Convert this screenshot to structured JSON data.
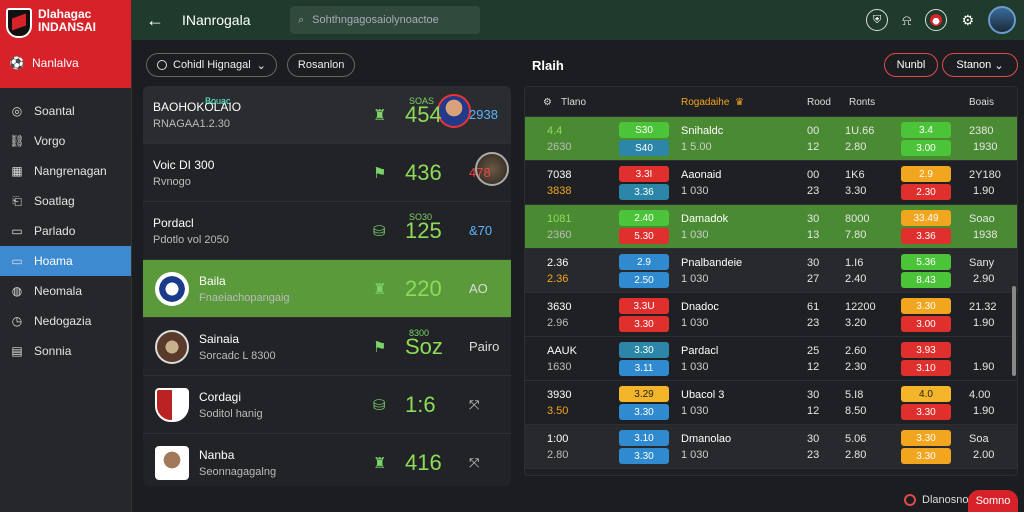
{
  "brand": {
    "name": "Dlahagac",
    "sub": "INDANSAI",
    "item": "Nanlalva"
  },
  "sidebar": {
    "items": [
      {
        "label": "Soantal",
        "icon": "compass-icon"
      },
      {
        "label": "Vorgo",
        "icon": "link-icon"
      },
      {
        "label": "Nangrenagan",
        "icon": "image-icon"
      },
      {
        "label": "Soatlag",
        "icon": "bookmark-icon"
      },
      {
        "label": "Parlado",
        "icon": "calendar-icon"
      },
      {
        "label": "Hoama",
        "icon": "card-icon",
        "active": true
      },
      {
        "label": "Neomala",
        "icon": "globe-icon"
      },
      {
        "label": "Nedogazia",
        "icon": "clock-icon"
      },
      {
        "label": "Sonnia",
        "icon": "chart-icon"
      }
    ]
  },
  "topbar": {
    "title": "INanrogala",
    "search_placeholder": "Sohthngagosaiolynoactoe"
  },
  "filters": {
    "primary": "Cohidl Hignagal",
    "secondary": "Rosanlon"
  },
  "matches": [
    {
      "tag": "Bouac",
      "mini": "SOAS",
      "name": "BAOHOKOLAIO",
      "sub": "RNAGAA1.2.30",
      "score": "454",
      "right": "2938",
      "right_color": "blue",
      "crest": "c1",
      "icon": "trophy-icon"
    },
    {
      "tag": "",
      "mini": "",
      "name": "Voic DI 300",
      "sub": "Rvnogo",
      "score": "436",
      "right": "478",
      "right_color": "red",
      "crest": "c2",
      "icon": "flag-icon"
    },
    {
      "tag": "",
      "mini": "SO30",
      "name": "Pordacl",
      "sub": "Pdotlo vol 2050",
      "score": "125",
      "right": "&70",
      "right_color": "blue",
      "crest": "c3",
      "icon": "money-icon"
    },
    {
      "tag": "",
      "mini": "",
      "name": "Baila",
      "sub": "Fnaeiachopangaig",
      "score": "220",
      "right": "AO",
      "right_color": "white",
      "crest": "c4",
      "icon": "trophy-icon",
      "highlight": true
    },
    {
      "tag": "",
      "mini": "8300",
      "name": "Sainaia",
      "sub": "Sorcadc L 8300",
      "score": "Soz",
      "right": "Pairo",
      "right_color": "white",
      "crest": "c5",
      "icon": "flag-icon"
    },
    {
      "tag": "",
      "mini": "",
      "name": "Cordagi",
      "sub": "Soditol hanig",
      "score": "1:6",
      "right": "⤧",
      "right_color": "white",
      "crest": "c6",
      "icon": "money-icon"
    },
    {
      "tag": "",
      "mini": "",
      "name": "Nanba",
      "sub": "Seonnagagalng",
      "score": "416",
      "right": "⤧",
      "right_color": "white",
      "crest": "c7",
      "icon": "trophy-icon"
    }
  ],
  "right": {
    "title": "Rlaih",
    "btn1": "Nunbl",
    "btn2": "Stanon",
    "head": {
      "col1": "Tlano",
      "col2": "Rogadaihe",
      "col3": "Rood",
      "col4": "Ronts",
      "col5": "Boais"
    },
    "rows": [
      {
        "s1": "4.4",
        "s2": "2630",
        "b1": "S30",
        "b2": "S40",
        "b1c": "green-b",
        "b2c": "teal-b",
        "team": "Snihaldc",
        "team2": "1 5.00",
        "c1": "00",
        "c1b": "12",
        "c2": "1U.66",
        "c2b": "2.80",
        "o1": "3.4",
        "o2": "3.00",
        "o1c": "green-b",
        "o2c": "green-b",
        "c3": "2380",
        "c3b": "1930",
        "style": "green"
      },
      {
        "s1": "7038",
        "s2": "3838",
        "b1": "3.3I",
        "b2": "3.36",
        "b1c": "red-b",
        "b2c": "teal-b",
        "team": "Aaonaid",
        "team2": "1 030",
        "c1": "00",
        "c1b": "23",
        "c2": "1K6",
        "c2b": "3.30",
        "o1": "2.9",
        "o2": "2.30",
        "o1c": "orange-b",
        "o2c": "red-b",
        "c3": "2Y180",
        "c3b": "1.90",
        "style": ""
      },
      {
        "s1": "1081",
        "s2": "2360",
        "b1": "2.40",
        "b2": "5.30",
        "b1c": "green-b",
        "b2c": "red-b",
        "team": "Damadok",
        "team2": "1 030",
        "c1": "30",
        "c1b": "13",
        "c2": "8000",
        "c2b": "7.80",
        "o1": "33.49",
        "o2": "3.36",
        "o1c": "orange-b",
        "o2c": "red-b",
        "c3": "Soao",
        "c3b": "1938",
        "style": "green"
      },
      {
        "s1": "2.36",
        "s2": "2.36",
        "b1": "2.9",
        "b2": "2.50",
        "b1c": "blue-b",
        "b2c": "blue-b",
        "team": "Pnalbandeie",
        "team2": "1 030",
        "c1": "30",
        "c1b": "27",
        "c2": "1.I6",
        "c2b": "2.40",
        "o1": "5.36",
        "o2": "8.43",
        "o1c": "green-b",
        "o2c": "green-b",
        "c3": "Sany",
        "c3b": "2.90",
        "style": "dim"
      },
      {
        "s1": "3630",
        "s2": "2.96",
        "b1": "3.3U",
        "b2": "3.30",
        "b1c": "red-b",
        "b2c": "red-b",
        "team": "Dnadoc",
        "team2": "1 030",
        "c1": "61",
        "c1b": "23",
        "c2": "12200",
        "c2b": "3.20",
        "o1": "3.30",
        "o1c": "orange-b",
        "o2": "3.00",
        "o2c": "red-b",
        "c3": "21.32",
        "c3b": "1.90",
        "style": ""
      },
      {
        "s1": "AAUK",
        "s2": "1630",
        "b1": "3.30",
        "b2": "3.11",
        "b1c": "teal-b",
        "b2c": "blue-b",
        "team": "Pardacl",
        "team2": "1 030",
        "c1": "25",
        "c1b": "12",
        "c2": "2.60",
        "c2b": "2.30",
        "o1": "3.93",
        "o1c": "red-b",
        "o2": "3.10",
        "o2c": "red-b",
        "c3": "",
        "c3b": "1.90",
        "style": ""
      },
      {
        "s1": "3930",
        "s2": "3.50",
        "b1": "3.29",
        "b2": "3.30",
        "b1c": "yellow-b",
        "b2c": "blue-b",
        "team": "Ubacol 3",
        "team2": "1 030",
        "c1": "30",
        "c1b": "12",
        "c2": "5.I8",
        "c2b": "8.50",
        "o1": "4.0",
        "o2": "3.30",
        "o1c": "yellow-b",
        "o2c": "red-b",
        "c3": "4.00",
        "c3b": "1.90",
        "style": ""
      },
      {
        "s1": "1:00",
        "s2": "2.80",
        "b1": "3.10",
        "b2": "3.30",
        "b1c": "blue-b",
        "b2c": "blue-b",
        "team": "Dmanolao",
        "team2": "1 030",
        "c1": "30",
        "c1b": "23",
        "c2": "5.06",
        "c2b": "2.80",
        "o1": "3.30",
        "o2": "3.30",
        "o1c": "orange-b",
        "o2c": "orange-b",
        "c3": "Soa",
        "c3b": "2.00",
        "style": "dim"
      }
    ]
  },
  "footer": {
    "link": "Dlanosno",
    "button": "Somno"
  }
}
